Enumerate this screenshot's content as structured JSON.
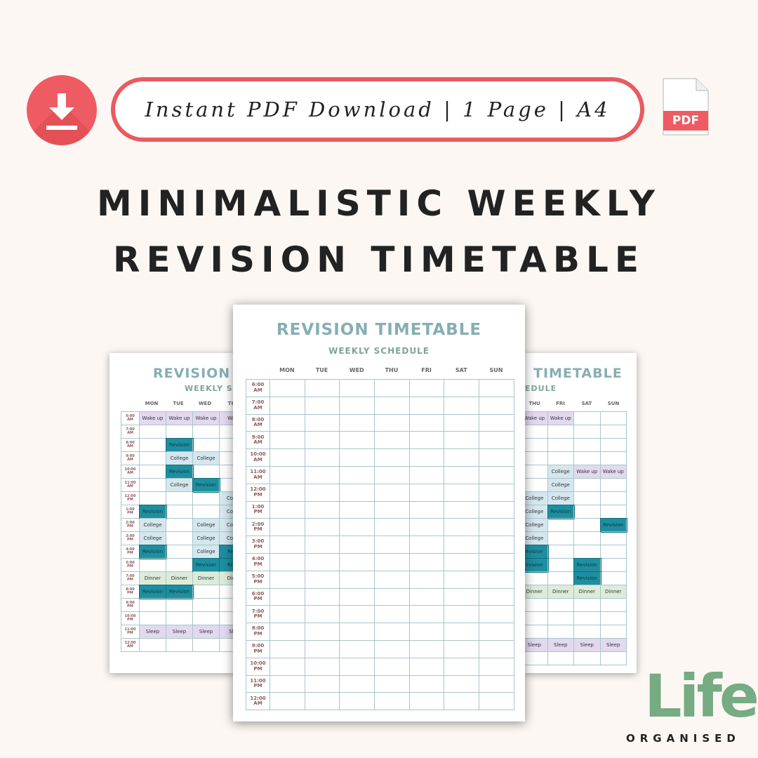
{
  "banner": {
    "text": "Instant PDF Download | 1 Page | A4"
  },
  "pdf_badge": {
    "label": "PDF"
  },
  "headline": {
    "line1": "MINIMALISTIC WEEKLY",
    "line2": "REVISION TIMETABLE"
  },
  "sheet": {
    "title": "REVISION TIMETABLE",
    "left_title": "REVISION TI",
    "right_title": "TIMETABLE",
    "subtitle": "WEEKLY SCHEDULE",
    "left_subtitle": "WEEKLY SCHE",
    "right_subtitle": "EDULE",
    "days": [
      "MON",
      "TUE",
      "WED",
      "THU",
      "FRI",
      "SAT",
      "SUN"
    ],
    "left_days": [
      "MON",
      "TUE",
      "WED",
      "TH"
    ],
    "right_days": [
      "THU",
      "FRI",
      "SAT",
      "SUN"
    ],
    "times_front": [
      "6:00\nAM",
      "7:00\nAM",
      "8:00\nAM",
      "9:00\nAM",
      "10:00\nAM",
      "11:00\nAM",
      "12:00\nPM",
      "1:00\nPM",
      "2:00\nPM",
      "3:00\nPM",
      "4:00\nPM",
      "5:00\nPM",
      "6:00\nPM",
      "7:00\nPM",
      "8:00\nPM",
      "9:00\nPM",
      "10:00\nPM",
      "11:00\nPM",
      "12:00\nAM"
    ],
    "times_back": [
      "6:00\nAM",
      "7:00\nAM",
      "8:00\nAM",
      "9:00\nAM",
      "10:00\nAM",
      "11:00\nAM",
      "12:00\nPM",
      "1:00\nPM",
      "2:00\nPM",
      "3:00\nPM",
      "4:00\nPM",
      "5:00\nPM",
      "7:00\nPM",
      "8:00\nPM",
      "9:00\nPM",
      "10:00\nPM",
      "11:00\nPM",
      "12:00\nAM"
    ]
  },
  "left_events": [
    {
      "r": 0,
      "c": 0,
      "label": "Wake up",
      "kind": "wake"
    },
    {
      "r": 0,
      "c": 1,
      "label": "Wake up",
      "kind": "wake"
    },
    {
      "r": 0,
      "c": 2,
      "label": "Wake up",
      "kind": "wake"
    },
    {
      "r": 0,
      "c": 3,
      "label": "Wak",
      "kind": "wake"
    },
    {
      "r": 2,
      "c": 1,
      "label": "Revision",
      "kind": "rev"
    },
    {
      "r": 3,
      "c": 1,
      "label": "College",
      "kind": "col"
    },
    {
      "r": 3,
      "c": 2,
      "label": "College",
      "kind": "col"
    },
    {
      "r": 4,
      "c": 1,
      "label": "Revision",
      "kind": "rev"
    },
    {
      "r": 5,
      "c": 1,
      "label": "College",
      "kind": "col"
    },
    {
      "r": 5,
      "c": 2,
      "label": "Revision",
      "kind": "rev"
    },
    {
      "r": 6,
      "c": 3,
      "label": "Colle",
      "kind": "col"
    },
    {
      "r": 7,
      "c": 0,
      "label": "Revision",
      "kind": "rev"
    },
    {
      "r": 7,
      "c": 3,
      "label": "Colle",
      "kind": "col"
    },
    {
      "r": 8,
      "c": 0,
      "label": "College",
      "kind": "col"
    },
    {
      "r": 8,
      "c": 2,
      "label": "College",
      "kind": "col"
    },
    {
      "r": 8,
      "c": 3,
      "label": "Colle",
      "kind": "col"
    },
    {
      "r": 9,
      "c": 0,
      "label": "College",
      "kind": "col"
    },
    {
      "r": 9,
      "c": 2,
      "label": "College",
      "kind": "col"
    },
    {
      "r": 9,
      "c": 3,
      "label": "Colle",
      "kind": "col"
    },
    {
      "r": 10,
      "c": 0,
      "label": "Revision",
      "kind": "rev"
    },
    {
      "r": 10,
      "c": 2,
      "label": "College",
      "kind": "col"
    },
    {
      "r": 10,
      "c": 3,
      "label": "Revi",
      "kind": "rev"
    },
    {
      "r": 11,
      "c": 2,
      "label": "Revision",
      "kind": "rev"
    },
    {
      "r": 11,
      "c": 3,
      "label": "Revi",
      "kind": "rev"
    },
    {
      "r": 12,
      "c": 0,
      "label": "Dinner",
      "kind": "din"
    },
    {
      "r": 12,
      "c": 1,
      "label": "Dinner",
      "kind": "din"
    },
    {
      "r": 12,
      "c": 2,
      "label": "Dinner",
      "kind": "din"
    },
    {
      "r": 12,
      "c": 3,
      "label": "Dinn",
      "kind": "din"
    },
    {
      "r": 13,
      "c": 0,
      "label": "Revision",
      "kind": "rev"
    },
    {
      "r": 13,
      "c": 1,
      "label": "Revision",
      "kind": "rev"
    },
    {
      "r": 16,
      "c": 0,
      "label": "Sleep",
      "kind": "wake"
    },
    {
      "r": 16,
      "c": 1,
      "label": "Sleep",
      "kind": "wake"
    },
    {
      "r": 16,
      "c": 2,
      "label": "Sleep",
      "kind": "wake"
    },
    {
      "r": 16,
      "c": 3,
      "label": "Sle",
      "kind": "wake"
    }
  ],
  "right_events": [
    {
      "r": 0,
      "c": 0,
      "label": "Wake up",
      "kind": "wake"
    },
    {
      "r": 0,
      "c": 1,
      "label": "Wake up",
      "kind": "wake"
    },
    {
      "r": 4,
      "c": 1,
      "label": "College",
      "kind": "col"
    },
    {
      "r": 4,
      "c": 2,
      "label": "Wake up",
      "kind": "wake"
    },
    {
      "r": 4,
      "c": 3,
      "label": "Wake up",
      "kind": "wake"
    },
    {
      "r": 5,
      "c": 1,
      "label": "College",
      "kind": "col"
    },
    {
      "r": 6,
      "c": 0,
      "label": "College",
      "kind": "col"
    },
    {
      "r": 6,
      "c": 1,
      "label": "College",
      "kind": "col"
    },
    {
      "r": 7,
      "c": 0,
      "label": "College",
      "kind": "col"
    },
    {
      "r": 7,
      "c": 1,
      "label": "Revision",
      "kind": "rev"
    },
    {
      "r": 8,
      "c": 0,
      "label": "College",
      "kind": "col"
    },
    {
      "r": 8,
      "c": 3,
      "label": "Revision",
      "kind": "rev"
    },
    {
      "r": 9,
      "c": 0,
      "label": "College",
      "kind": "col"
    },
    {
      "r": 10,
      "c": 0,
      "label": "evision",
      "kind": "rev"
    },
    {
      "r": 11,
      "c": 0,
      "label": "evision",
      "kind": "rev"
    },
    {
      "r": 11,
      "c": 2,
      "label": "Revision",
      "kind": "rev"
    },
    {
      "r": 12,
      "c": 2,
      "label": "Revision",
      "kind": "rev"
    },
    {
      "r": 13,
      "c": 0,
      "label": "Dinner",
      "kind": "din"
    },
    {
      "r": 13,
      "c": 1,
      "label": "Dinner",
      "kind": "din"
    },
    {
      "r": 13,
      "c": 2,
      "label": "Dinner",
      "kind": "din"
    },
    {
      "r": 13,
      "c": 3,
      "label": "Dinner",
      "kind": "din"
    },
    {
      "r": 17,
      "c": 0,
      "label": "Sleep",
      "kind": "wake"
    },
    {
      "r": 17,
      "c": 1,
      "label": "Sleep",
      "kind": "wake"
    },
    {
      "r": 17,
      "c": 2,
      "label": "Sleep",
      "kind": "wake"
    },
    {
      "r": 17,
      "c": 3,
      "label": "Sleep",
      "kind": "wake"
    }
  ],
  "colors": {
    "wake": "#e3d9ef",
    "col": "#d5e7ee",
    "rev": "#1d8fa0",
    "din": "#dcecd9",
    "accent": "#ef5b62"
  },
  "logo": {
    "life": "Life",
    "organised": "ORGANISED"
  }
}
